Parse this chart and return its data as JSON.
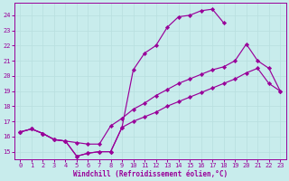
{
  "xlabel": "Windchill (Refroidissement éolien,°C)",
  "bg_color": "#c8ecec",
  "line_color": "#990099",
  "grid_color": "#b8dede",
  "xlim": [
    -0.5,
    23.5
  ],
  "ylim": [
    14.5,
    24.8
  ],
  "yticks": [
    15,
    16,
    17,
    18,
    19,
    20,
    21,
    22,
    23,
    24
  ],
  "xticks": [
    0,
    1,
    2,
    3,
    4,
    5,
    6,
    7,
    8,
    9,
    10,
    11,
    12,
    13,
    14,
    15,
    16,
    17,
    18,
    19,
    20,
    21,
    22,
    23
  ],
  "line1_x": [
    0,
    1,
    2,
    3,
    4,
    5,
    6,
    7,
    8,
    9,
    10,
    11,
    12,
    13,
    14,
    15,
    16,
    17,
    18,
    19
  ],
  "line1_y": [
    16.3,
    16.5,
    16.2,
    15.8,
    15.7,
    14.7,
    14.9,
    15.0,
    15.0,
    16.6,
    20.4,
    21.5,
    22.0,
    23.2,
    23.9,
    24.0,
    24.3,
    24.4,
    23.5,
    null
  ],
  "line2_x": [
    0,
    1,
    2,
    3,
    4,
    5,
    6,
    7,
    8,
    9,
    10,
    11,
    12,
    13,
    14,
    15,
    16,
    17,
    18,
    19,
    20,
    21,
    22,
    23
  ],
  "line2_y": [
    16.3,
    16.5,
    16.2,
    15.8,
    15.7,
    15.6,
    15.5,
    15.5,
    16.7,
    17.2,
    17.8,
    18.2,
    18.7,
    19.1,
    19.5,
    19.8,
    20.1,
    20.4,
    20.6,
    21.0,
    22.1,
    21.0,
    20.5,
    19.0
  ],
  "line3_x": [
    0,
    1,
    2,
    3,
    4,
    5,
    6,
    7,
    8,
    9,
    10,
    11,
    12,
    13,
    14,
    15,
    16,
    17,
    18,
    19,
    20,
    21,
    22,
    23
  ],
  "line3_y": [
    16.3,
    16.5,
    16.2,
    15.8,
    15.7,
    14.7,
    14.9,
    15.0,
    15.0,
    16.6,
    17.0,
    17.3,
    17.6,
    18.0,
    18.3,
    18.6,
    18.9,
    19.2,
    19.5,
    19.8,
    20.2,
    20.5,
    19.5,
    19.0
  ]
}
